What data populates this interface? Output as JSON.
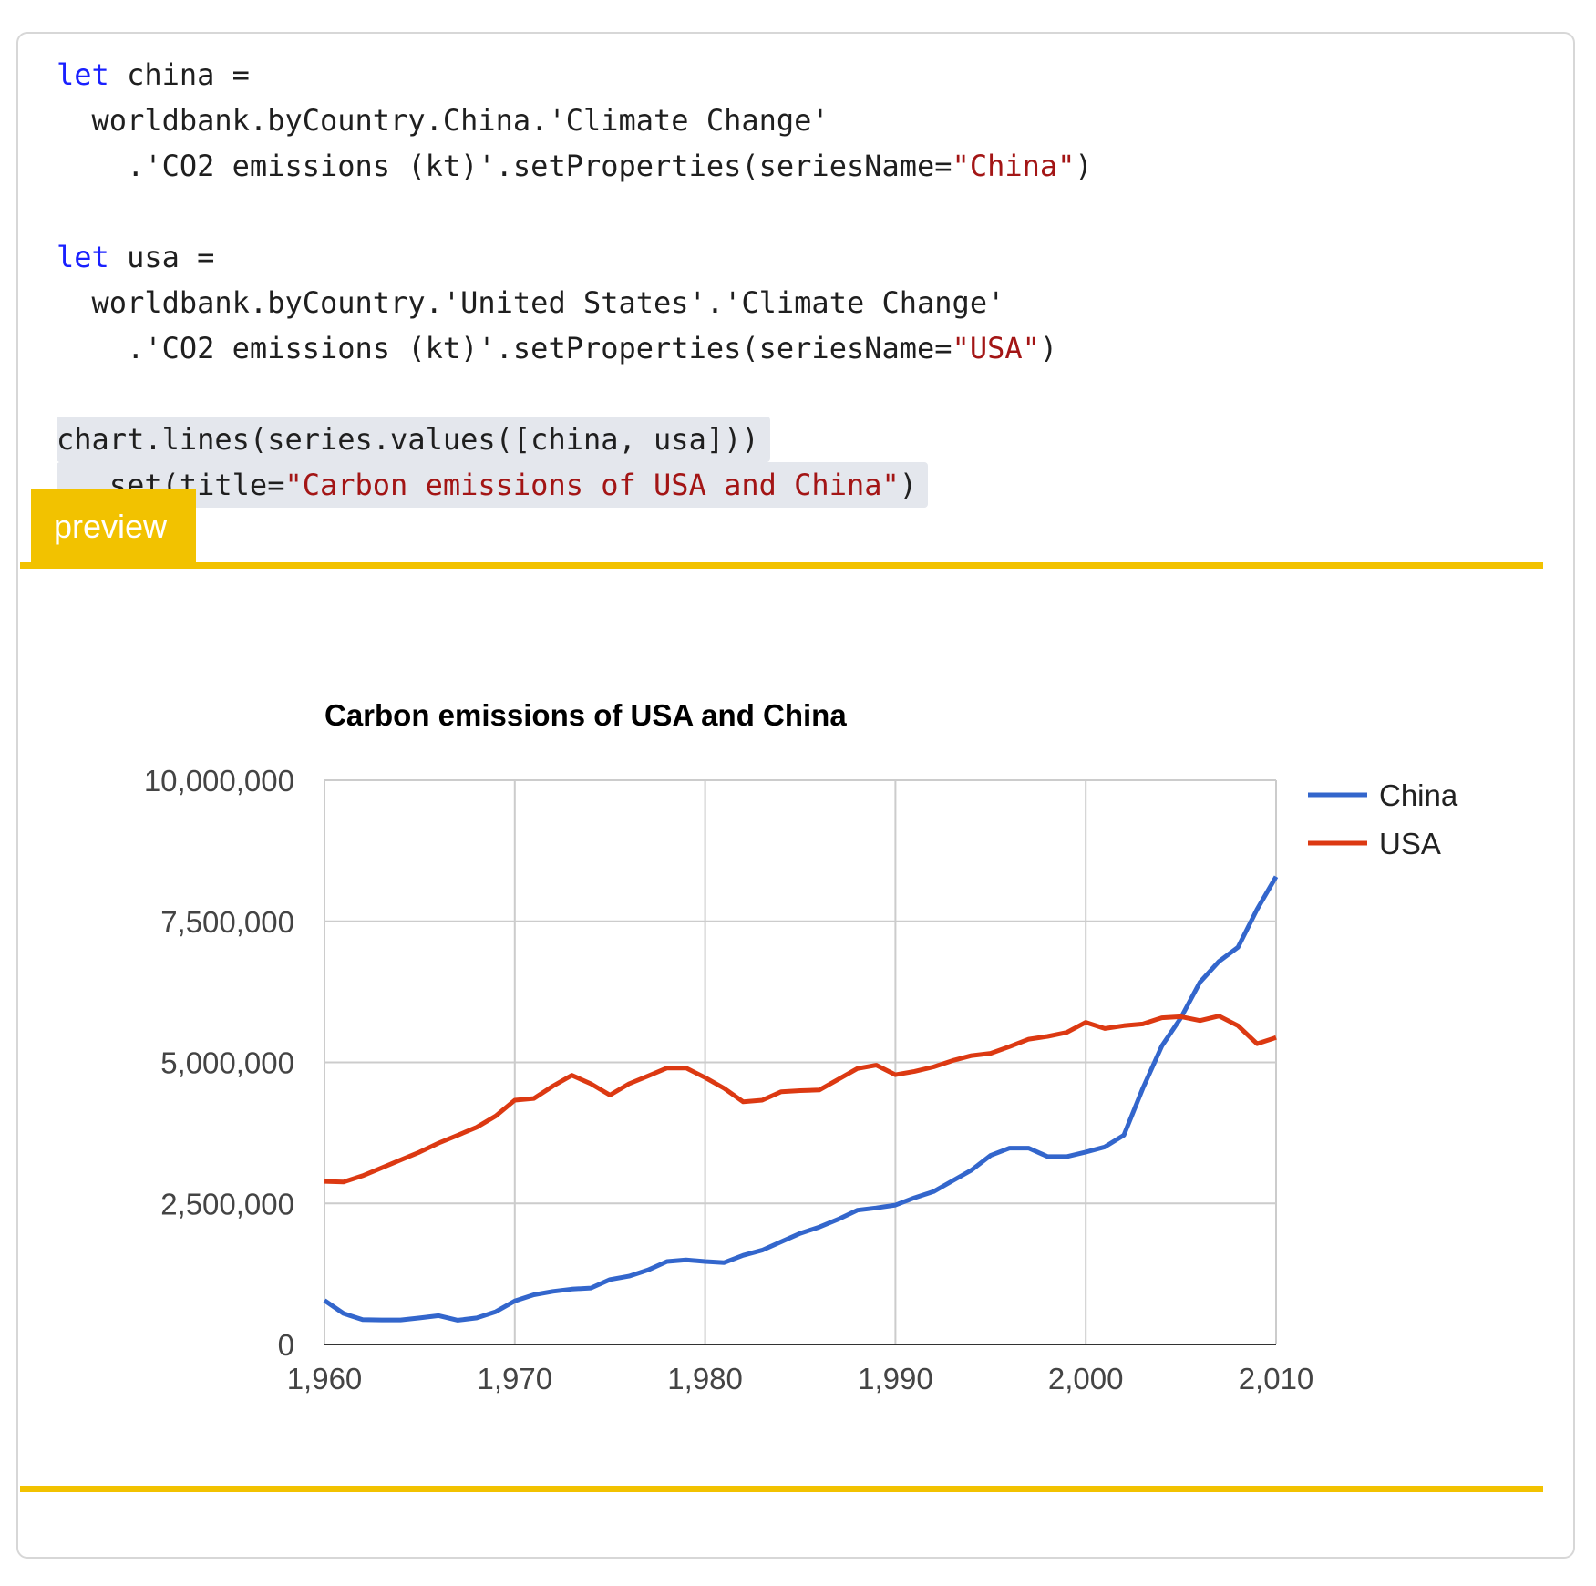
{
  "code": {
    "lines": [
      [
        {
          "t": "let",
          "c": "kw"
        },
        {
          "t": " china =",
          "c": ""
        }
      ],
      [
        {
          "t": "  worldbank.byCountry.China.'Climate Change'",
          "c": ""
        }
      ],
      [
        {
          "t": "    .'CO2 emissions (kt)'.setProperties(seriesName=",
          "c": ""
        },
        {
          "t": "\"China\"",
          "c": "str"
        },
        {
          "t": ")",
          "c": ""
        }
      ],
      [],
      [
        {
          "t": "let",
          "c": "kw"
        },
        {
          "t": " usa =",
          "c": ""
        }
      ],
      [
        {
          "t": "  worldbank.byCountry.'United States'.'Climate Change'",
          "c": ""
        }
      ],
      [
        {
          "t": "    .'CO2 emissions (kt)'.setProperties(seriesName=",
          "c": ""
        },
        {
          "t": "\"USA\"",
          "c": "str"
        },
        {
          "t": ")",
          "c": ""
        }
      ],
      [],
      [
        {
          "t": "chart.lines(series.values([china, usa]))",
          "c": "",
          "hl": true
        }
      ],
      [
        {
          "t": "  .set(title=",
          "c": "",
          "hl": true
        },
        {
          "t": "\"Carbon emissions of USA and China\"",
          "c": "str",
          "hl": true
        },
        {
          "t": ")",
          "c": "",
          "hl": true
        }
      ]
    ]
  },
  "preview_tab": {
    "label": "preview"
  },
  "colors": {
    "accent": "#f2c200",
    "china": "#3366cc",
    "usa": "#dc3912"
  },
  "chart_data": {
    "type": "line",
    "title": "Carbon emissions of USA and China",
    "xlabel": "",
    "ylabel": "",
    "xlim": [
      1960,
      2010
    ],
    "ylim": [
      0,
      10000000
    ],
    "x_ticks": [
      1960,
      1970,
      1980,
      1990,
      2000,
      2010
    ],
    "x_tick_labels": [
      "1,960",
      "1,970",
      "1,980",
      "1,990",
      "2,000",
      "2,010"
    ],
    "y_ticks": [
      0,
      2500000,
      5000000,
      7500000,
      10000000
    ],
    "y_tick_labels": [
      "0",
      "2,500,000",
      "5,000,000",
      "7,500,000",
      "10,000,000"
    ],
    "grid": true,
    "legend": "right",
    "x": [
      1960,
      1961,
      1962,
      1963,
      1964,
      1965,
      1966,
      1967,
      1968,
      1969,
      1970,
      1971,
      1972,
      1973,
      1974,
      1975,
      1976,
      1977,
      1978,
      1979,
      1980,
      1981,
      1982,
      1983,
      1984,
      1985,
      1986,
      1987,
      1988,
      1989,
      1990,
      1991,
      1992,
      1993,
      1994,
      1995,
      1996,
      1997,
      1998,
      1999,
      2000,
      2001,
      2002,
      2003,
      2004,
      2005,
      2006,
      2007,
      2008,
      2009,
      2010
    ],
    "series": [
      {
        "name": "China",
        "color": "#3366cc",
        "values": [
          780000,
          550000,
          440000,
          435000,
          435000,
          470000,
          510000,
          430000,
          470000,
          580000,
          770000,
          880000,
          940000,
          980000,
          1000000,
          1150000,
          1210000,
          1320000,
          1470000,
          1500000,
          1470000,
          1450000,
          1580000,
          1670000,
          1820000,
          1970000,
          2080000,
          2220000,
          2380000,
          2420000,
          2470000,
          2600000,
          2710000,
          2900000,
          3090000,
          3350000,
          3480000,
          3480000,
          3330000,
          3330000,
          3410000,
          3500000,
          3710000,
          4540000,
          5290000,
          5790000,
          6420000,
          6790000,
          7040000,
          7710000,
          8290000
        ]
      },
      {
        "name": "USA",
        "color": "#dc3912",
        "values": [
          2890000,
          2880000,
          2990000,
          3130000,
          3270000,
          3410000,
          3570000,
          3710000,
          3850000,
          4050000,
          4330000,
          4360000,
          4580000,
          4770000,
          4620000,
          4420000,
          4620000,
          4760000,
          4900000,
          4900000,
          4730000,
          4540000,
          4300000,
          4330000,
          4480000,
          4500000,
          4510000,
          4700000,
          4890000,
          4950000,
          4780000,
          4840000,
          4920000,
          5030000,
          5120000,
          5160000,
          5280000,
          5410000,
          5460000,
          5530000,
          5710000,
          5600000,
          5650000,
          5680000,
          5790000,
          5810000,
          5740000,
          5820000,
          5650000,
          5330000,
          5440000
        ]
      }
    ]
  }
}
